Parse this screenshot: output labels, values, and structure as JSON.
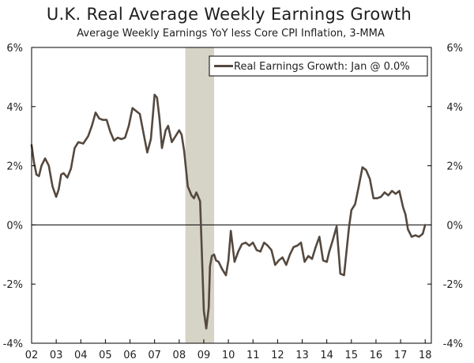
{
  "chart_data": {
    "type": "line",
    "title": "U.K. Real Average Weekly Earnings Growth",
    "subtitle": "Average Weekly Earnings YoY less Core CPI Inflation, 3-MMA",
    "y_unit": "%",
    "ylim": [
      -4,
      6
    ],
    "yticks": [
      -4,
      -2,
      0,
      2,
      4,
      6
    ],
    "ytick_labels": [
      "-4%",
      "-2%",
      "0%",
      "2%",
      "4%",
      "6%"
    ],
    "xlim": [
      2002,
      2018.25
    ],
    "xticks": [
      2002,
      2003,
      2004,
      2005,
      2006,
      2007,
      2008,
      2009,
      2010,
      2011,
      2012,
      2013,
      2014,
      2015,
      2016,
      2017,
      2018
    ],
    "xtick_labels": [
      "02",
      "03",
      "04",
      "05",
      "06",
      "07",
      "08",
      "09",
      "10",
      "11",
      "12",
      "13",
      "14",
      "15",
      "16",
      "17",
      "18"
    ],
    "recession": {
      "start": 2008.25,
      "end": 2009.42,
      "color": "#d6d3c7"
    },
    "zero_line": true,
    "grid": false,
    "legend": {
      "position": "top-right",
      "entries": [
        "Real Earnings Growth: Jan @ 0.0%"
      ]
    },
    "series": [
      {
        "name": "Real Earnings Growth: Jan @ 0.0%",
        "color": "#55493f",
        "x": [
          2002.0,
          2002.1,
          2002.2,
          2002.3,
          2002.4,
          2002.55,
          2002.7,
          2002.85,
          2003.0,
          2003.1,
          2003.2,
          2003.3,
          2003.45,
          2003.6,
          2003.75,
          2003.9,
          2004.1,
          2004.3,
          2004.45,
          2004.6,
          2004.75,
          2004.9,
          2005.05,
          2005.2,
          2005.35,
          2005.5,
          2005.65,
          2005.8,
          2005.95,
          2006.1,
          2006.25,
          2006.4,
          2006.55,
          2006.7,
          2006.85,
          2007.0,
          2007.1,
          2007.2,
          2007.3,
          2007.45,
          2007.55,
          2007.7,
          2007.85,
          2008.0,
          2008.1,
          2008.2,
          2008.35,
          2008.5,
          2008.6,
          2008.7,
          2008.85,
          2009.0,
          2009.1,
          2009.2,
          2009.25,
          2009.33,
          2009.42,
          2009.5,
          2009.6,
          2009.75,
          2009.9,
          2010.0,
          2010.1,
          2010.25,
          2010.4,
          2010.55,
          2010.7,
          2010.85,
          2011.0,
          2011.15,
          2011.3,
          2011.45,
          2011.6,
          2011.75,
          2011.9,
          2012.05,
          2012.2,
          2012.35,
          2012.5,
          2012.65,
          2012.8,
          2012.95,
          2013.1,
          2013.25,
          2013.4,
          2013.55,
          2013.7,
          2013.85,
          2014.0,
          2014.1,
          2014.25,
          2014.4,
          2014.55,
          2014.7,
          2014.8,
          2014.9,
          2015.0,
          2015.15,
          2015.3,
          2015.45,
          2015.6,
          2015.75,
          2015.9,
          2016.05,
          2016.2,
          2016.35,
          2016.5,
          2016.65,
          2016.8,
          2016.95,
          2017.1,
          2017.2,
          2017.3,
          2017.45,
          2017.6,
          2017.75,
          2017.9,
          2018.0
        ],
        "y": [
          2.7,
          2.1,
          1.7,
          1.65,
          2.0,
          2.25,
          2.0,
          1.3,
          0.95,
          1.2,
          1.7,
          1.75,
          1.6,
          1.9,
          2.6,
          2.8,
          2.75,
          3.0,
          3.35,
          3.8,
          3.6,
          3.55,
          3.55,
          3.15,
          2.85,
          2.95,
          2.9,
          2.95,
          3.35,
          3.95,
          3.85,
          3.75,
          3.1,
          2.45,
          2.9,
          4.4,
          4.3,
          3.6,
          2.6,
          3.2,
          3.35,
          2.8,
          3.0,
          3.2,
          3.05,
          2.5,
          1.3,
          1.0,
          0.9,
          1.1,
          0.8,
          -2.9,
          -3.5,
          -2.8,
          -1.4,
          -1.05,
          -1.0,
          -1.2,
          -1.25,
          -1.5,
          -1.7,
          -1.2,
          -0.2,
          -1.25,
          -0.9,
          -0.65,
          -0.6,
          -0.7,
          -0.6,
          -0.85,
          -0.9,
          -0.6,
          -0.7,
          -0.85,
          -1.35,
          -1.2,
          -1.1,
          -1.35,
          -1.0,
          -0.75,
          -0.7,
          -0.6,
          -1.25,
          -1.05,
          -1.15,
          -0.75,
          -0.4,
          -1.2,
          -1.25,
          -0.9,
          -0.5,
          -0.05,
          -1.65,
          -1.7,
          -0.9,
          -0.1,
          0.5,
          0.7,
          1.3,
          1.95,
          1.85,
          1.55,
          0.9,
          0.9,
          0.95,
          1.1,
          1.0,
          1.15,
          1.05,
          1.15,
          0.6,
          0.35,
          -0.15,
          -0.4,
          -0.35,
          -0.4,
          -0.3,
          0.0
        ]
      }
    ]
  }
}
